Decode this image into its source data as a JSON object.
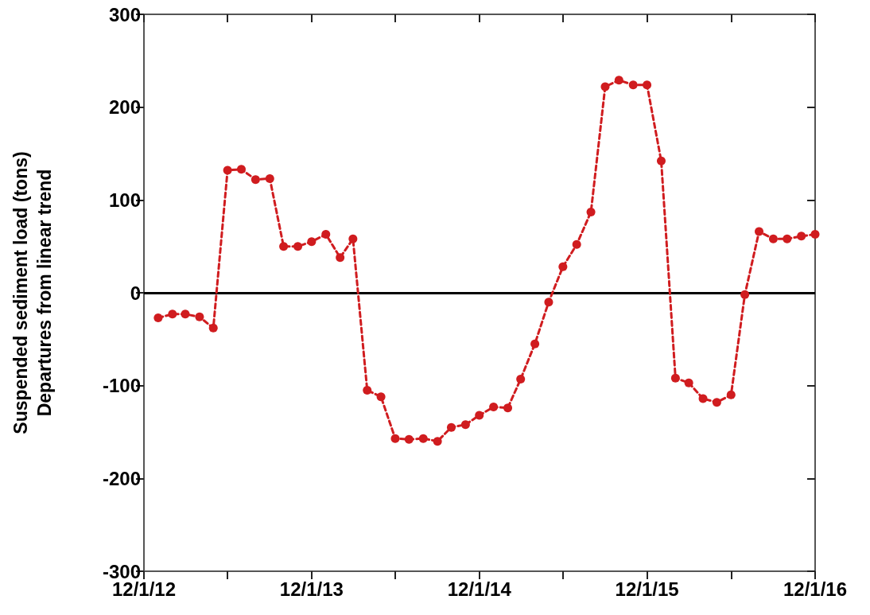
{
  "chart_data": {
    "type": "line",
    "ylabel": "Suspended sediment load (tons)\nDepartures from linear trend",
    "x": [
      "2013-01-01",
      "2013-02-01",
      "2013-03-01",
      "2013-04-01",
      "2013-05-01",
      "2013-06-01",
      "2013-07-01",
      "2013-08-01",
      "2013-09-01",
      "2013-10-01",
      "2013-11-01",
      "2013-12-01",
      "2014-01-01",
      "2014-02-01",
      "2014-03-01",
      "2014-04-01",
      "2014-05-01",
      "2014-06-01",
      "2014-07-01",
      "2014-08-01",
      "2014-09-01",
      "2014-10-01",
      "2014-11-01",
      "2014-12-01",
      "2015-01-01",
      "2015-02-01",
      "2015-03-01",
      "2015-04-01",
      "2015-05-01",
      "2015-06-01",
      "2015-07-01",
      "2015-08-01",
      "2015-09-01",
      "2015-10-01",
      "2015-11-01",
      "2015-12-01",
      "2016-01-01",
      "2016-02-01",
      "2016-03-01",
      "2016-04-01",
      "2016-05-01",
      "2016-06-01",
      "2016-07-01",
      "2016-08-01",
      "2016-09-01",
      "2016-10-01",
      "2016-11-01",
      "2016-12-01"
    ],
    "series": [
      {
        "color": "#d01c1f",
        "values": [
          -27,
          -23,
          -23,
          -26,
          -38,
          132,
          133,
          122,
          123,
          50,
          50,
          55,
          63,
          38,
          58,
          -105,
          -112,
          -157,
          -158,
          -157,
          -160,
          -145,
          -142,
          -132,
          -123,
          -124,
          -93,
          -55,
          -10,
          28,
          52,
          87,
          222,
          229,
          224,
          224,
          142,
          -92,
          -97,
          -114,
          -118,
          -110,
          -2,
          66,
          58,
          58,
          61,
          63
        ]
      }
    ],
    "xlim": [
      "2012-12-01",
      "2016-12-01"
    ],
    "xticks": [
      {
        "value": "2012-12-01",
        "label": "12/1/12"
      },
      {
        "value": "2013-06-01",
        "label": null
      },
      {
        "value": "2013-12-01",
        "label": "12/1/13"
      },
      {
        "value": "2014-06-01",
        "label": null
      },
      {
        "value": "2014-12-01",
        "label": "12/1/14"
      },
      {
        "value": "2015-06-01",
        "label": null
      },
      {
        "value": "2015-12-01",
        "label": "12/1/15"
      },
      {
        "value": "2016-06-01",
        "label": null
      },
      {
        "value": "2016-12-01",
        "label": "12/1/16"
      }
    ],
    "ylim": [
      -300,
      300
    ],
    "yticks": [
      -300,
      -200,
      -100,
      0,
      100,
      200,
      300
    ],
    "ref_lines": [
      {
        "axis": "y",
        "value": 0,
        "color": "#000000",
        "line_style": "solid"
      }
    ],
    "marker": "circle",
    "line_style": "dashed"
  }
}
